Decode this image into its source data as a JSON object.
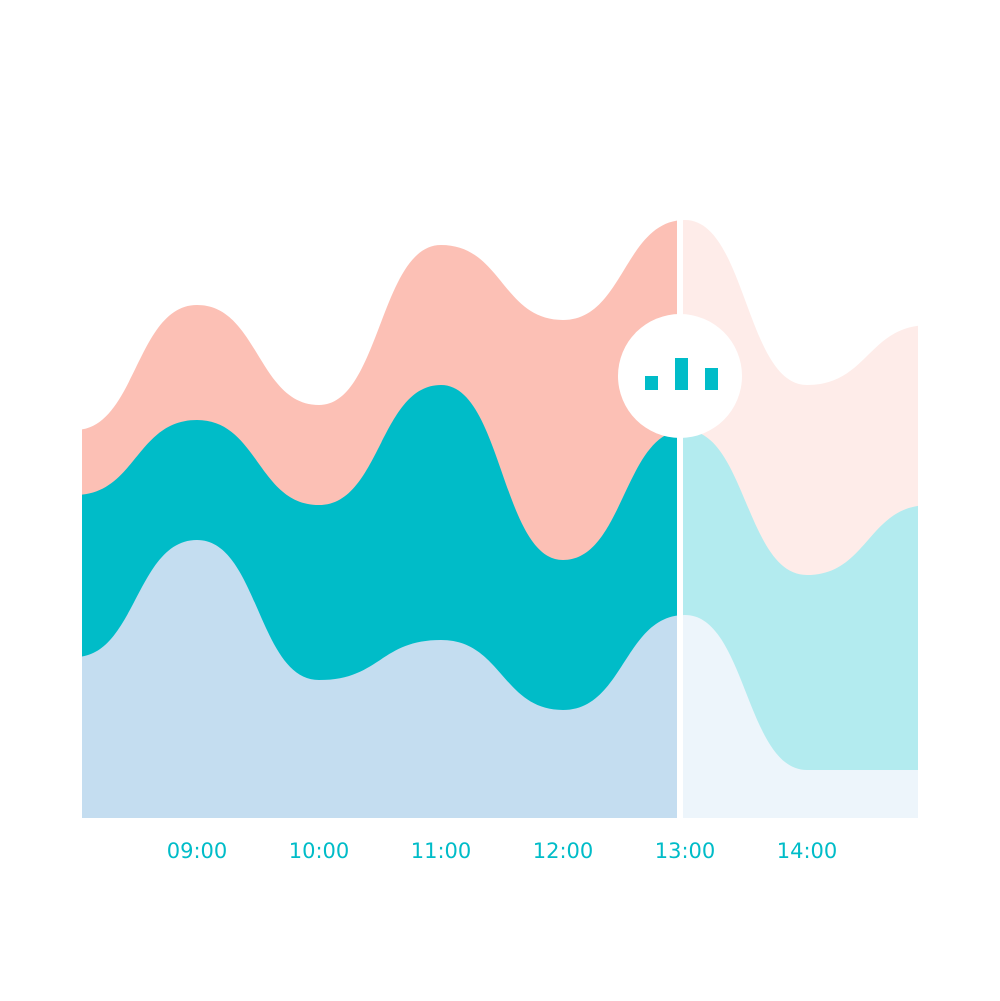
{
  "chart_data": {
    "type": "stacked-area",
    "categories": [
      null,
      "09:00",
      "10:00",
      "11:00",
      "12:00",
      "13:00",
      "14:00",
      null
    ],
    "series": [
      {
        "color": "#c4ddf0",
        "values": [
          161,
          278,
          138,
          178,
          108,
          203,
          48,
          48
        ]
      },
      {
        "color": "#00bcc8",
        "values": [
          162,
          120,
          175,
          255,
          150,
          185,
          195,
          265
        ]
      },
      {
        "color": "#fcc0b5",
        "values": [
          65,
          115,
          100,
          140,
          240,
          210,
          190,
          180
        ]
      }
    ],
    "ylim": [
      0,
      620
    ]
  }
}
